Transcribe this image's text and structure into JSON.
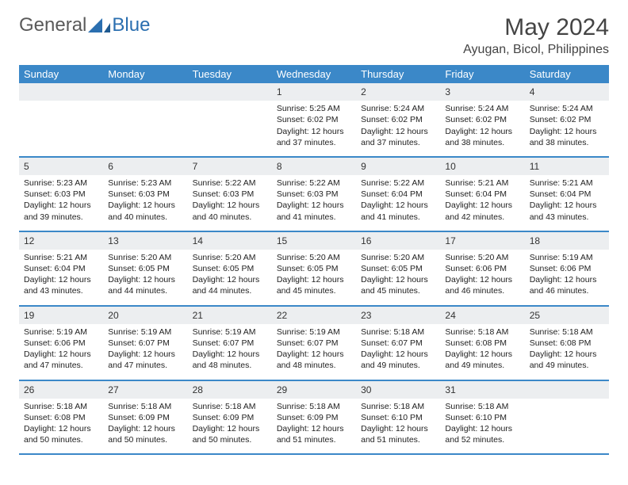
{
  "brand": {
    "part1": "General",
    "part2": "Blue"
  },
  "title": "May 2024",
  "location": "Ayugan, Bicol, Philippines",
  "colors": {
    "header_bg": "#3b88c8",
    "header_fg": "#ffffff",
    "daynum_bg": "#eceef0",
    "rule": "#3b88c8",
    "text": "#222222",
    "page_bg": "#ffffff"
  },
  "typography": {
    "title_fontsize": 30,
    "location_fontsize": 16,
    "dow_fontsize": 13,
    "cell_fontsize": 10.5
  },
  "days_of_week": [
    "Sunday",
    "Monday",
    "Tuesday",
    "Wednesday",
    "Thursday",
    "Friday",
    "Saturday"
  ],
  "weeks": [
    [
      null,
      null,
      null,
      {
        "n": "1",
        "sr": "5:25 AM",
        "ss": "6:02 PM",
        "dl": "12 hours and 37 minutes."
      },
      {
        "n": "2",
        "sr": "5:24 AM",
        "ss": "6:02 PM",
        "dl": "12 hours and 37 minutes."
      },
      {
        "n": "3",
        "sr": "5:24 AM",
        "ss": "6:02 PM",
        "dl": "12 hours and 38 minutes."
      },
      {
        "n": "4",
        "sr": "5:24 AM",
        "ss": "6:02 PM",
        "dl": "12 hours and 38 minutes."
      }
    ],
    [
      {
        "n": "5",
        "sr": "5:23 AM",
        "ss": "6:03 PM",
        "dl": "12 hours and 39 minutes."
      },
      {
        "n": "6",
        "sr": "5:23 AM",
        "ss": "6:03 PM",
        "dl": "12 hours and 40 minutes."
      },
      {
        "n": "7",
        "sr": "5:22 AM",
        "ss": "6:03 PM",
        "dl": "12 hours and 40 minutes."
      },
      {
        "n": "8",
        "sr": "5:22 AM",
        "ss": "6:03 PM",
        "dl": "12 hours and 41 minutes."
      },
      {
        "n": "9",
        "sr": "5:22 AM",
        "ss": "6:04 PM",
        "dl": "12 hours and 41 minutes."
      },
      {
        "n": "10",
        "sr": "5:21 AM",
        "ss": "6:04 PM",
        "dl": "12 hours and 42 minutes."
      },
      {
        "n": "11",
        "sr": "5:21 AM",
        "ss": "6:04 PM",
        "dl": "12 hours and 43 minutes."
      }
    ],
    [
      {
        "n": "12",
        "sr": "5:21 AM",
        "ss": "6:04 PM",
        "dl": "12 hours and 43 minutes."
      },
      {
        "n": "13",
        "sr": "5:20 AM",
        "ss": "6:05 PM",
        "dl": "12 hours and 44 minutes."
      },
      {
        "n": "14",
        "sr": "5:20 AM",
        "ss": "6:05 PM",
        "dl": "12 hours and 44 minutes."
      },
      {
        "n": "15",
        "sr": "5:20 AM",
        "ss": "6:05 PM",
        "dl": "12 hours and 45 minutes."
      },
      {
        "n": "16",
        "sr": "5:20 AM",
        "ss": "6:05 PM",
        "dl": "12 hours and 45 minutes."
      },
      {
        "n": "17",
        "sr": "5:20 AM",
        "ss": "6:06 PM",
        "dl": "12 hours and 46 minutes."
      },
      {
        "n": "18",
        "sr": "5:19 AM",
        "ss": "6:06 PM",
        "dl": "12 hours and 46 minutes."
      }
    ],
    [
      {
        "n": "19",
        "sr": "5:19 AM",
        "ss": "6:06 PM",
        "dl": "12 hours and 47 minutes."
      },
      {
        "n": "20",
        "sr": "5:19 AM",
        "ss": "6:07 PM",
        "dl": "12 hours and 47 minutes."
      },
      {
        "n": "21",
        "sr": "5:19 AM",
        "ss": "6:07 PM",
        "dl": "12 hours and 48 minutes."
      },
      {
        "n": "22",
        "sr": "5:19 AM",
        "ss": "6:07 PM",
        "dl": "12 hours and 48 minutes."
      },
      {
        "n": "23",
        "sr": "5:18 AM",
        "ss": "6:07 PM",
        "dl": "12 hours and 49 minutes."
      },
      {
        "n": "24",
        "sr": "5:18 AM",
        "ss": "6:08 PM",
        "dl": "12 hours and 49 minutes."
      },
      {
        "n": "25",
        "sr": "5:18 AM",
        "ss": "6:08 PM",
        "dl": "12 hours and 49 minutes."
      }
    ],
    [
      {
        "n": "26",
        "sr": "5:18 AM",
        "ss": "6:08 PM",
        "dl": "12 hours and 50 minutes."
      },
      {
        "n": "27",
        "sr": "5:18 AM",
        "ss": "6:09 PM",
        "dl": "12 hours and 50 minutes."
      },
      {
        "n": "28",
        "sr": "5:18 AM",
        "ss": "6:09 PM",
        "dl": "12 hours and 50 minutes."
      },
      {
        "n": "29",
        "sr": "5:18 AM",
        "ss": "6:09 PM",
        "dl": "12 hours and 51 minutes."
      },
      {
        "n": "30",
        "sr": "5:18 AM",
        "ss": "6:10 PM",
        "dl": "12 hours and 51 minutes."
      },
      {
        "n": "31",
        "sr": "5:18 AM",
        "ss": "6:10 PM",
        "dl": "12 hours and 52 minutes."
      },
      null
    ]
  ],
  "labels": {
    "sunrise": "Sunrise:",
    "sunset": "Sunset:",
    "daylight": "Daylight:"
  }
}
